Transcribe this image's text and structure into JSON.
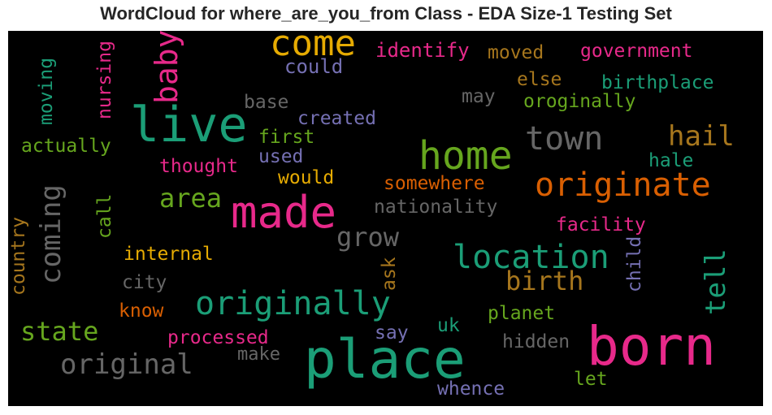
{
  "title": "WordCloud for where_are_you_from Class - EDA Size-1 Testing Set",
  "words": {
    "come": {
      "text": "come",
      "color": "#e6ab02"
    },
    "live": {
      "text": "live",
      "color": "#1b9e77"
    },
    "home": {
      "text": "home",
      "color": "#66a61e"
    },
    "town": {
      "text": "town",
      "color": "#666666"
    },
    "made": {
      "text": "made",
      "color": "#e7298a"
    },
    "originate": {
      "text": "originate",
      "color": "#d95f02"
    },
    "place": {
      "text": "place",
      "color": "#1b9e77"
    },
    "born": {
      "text": "born",
      "color": "#e7298a"
    },
    "originally_big": {
      "text": "originally",
      "color": "#1b9e77"
    },
    "location": {
      "text": "location",
      "color": "#1b9e77"
    },
    "baby": {
      "text": "baby",
      "color": "#e7298a"
    },
    "could": {
      "text": "could",
      "color": "#7570b3"
    },
    "identify": {
      "text": "identify",
      "color": "#e7298a"
    },
    "moved": {
      "text": "moved",
      "color": "#a6761d"
    },
    "government": {
      "text": "government",
      "color": "#e7298a"
    },
    "else": {
      "text": "else",
      "color": "#a6761d"
    },
    "birthplace": {
      "text": "birthplace",
      "color": "#1b9e77"
    },
    "may": {
      "text": "may",
      "color": "#666666"
    },
    "oroginally": {
      "text": "oroginally",
      "color": "#66a61e"
    },
    "base": {
      "text": "base",
      "color": "#666666"
    },
    "created": {
      "text": "created",
      "color": "#7570b3"
    },
    "moving": {
      "text": "moving",
      "color": "#1b9e77"
    },
    "nursing": {
      "text": "nursing",
      "color": "#e7298a"
    },
    "actually": {
      "text": "actually",
      "color": "#66a61e"
    },
    "first": {
      "text": "first",
      "color": "#66a61e"
    },
    "used": {
      "text": "used",
      "color": "#7570b3"
    },
    "hail": {
      "text": "hail",
      "color": "#a6761d"
    },
    "hale": {
      "text": "hale",
      "color": "#1b9e77"
    },
    "thought": {
      "text": "thought",
      "color": "#e7298a"
    },
    "would": {
      "text": "would",
      "color": "#e6ab02"
    },
    "somewhere": {
      "text": "somewhere",
      "color": "#d95f02"
    },
    "area": {
      "text": "area",
      "color": "#66a61e"
    },
    "coming": {
      "text": "coming",
      "color": "#666666"
    },
    "nationality": {
      "text": "nationality",
      "color": "#666666"
    },
    "call": {
      "text": "call",
      "color": "#66a61e"
    },
    "country": {
      "text": "country",
      "color": "#a6761d"
    },
    "grow": {
      "text": "grow",
      "color": "#666666"
    },
    "facility": {
      "text": "facility",
      "color": "#e7298a"
    },
    "internal": {
      "text": "internal",
      "color": "#e6ab02"
    },
    "child": {
      "text": "child",
      "color": "#7570b3"
    },
    "tell": {
      "text": "tell",
      "color": "#1b9e77"
    },
    "birth": {
      "text": "birth",
      "color": "#a6761d"
    },
    "ask": {
      "text": "ask",
      "color": "#a6761d"
    },
    "city": {
      "text": "city",
      "color": "#666666"
    },
    "know": {
      "text": "know",
      "color": "#d95f02"
    },
    "planet": {
      "text": "planet",
      "color": "#66a61e"
    },
    "state": {
      "text": "state",
      "color": "#66a61e"
    },
    "say": {
      "text": "say",
      "color": "#7570b3"
    },
    "uk": {
      "text": "uk",
      "color": "#1b9e77"
    },
    "processed": {
      "text": "processed",
      "color": "#e7298a"
    },
    "hidden": {
      "text": "hidden",
      "color": "#666666"
    },
    "original": {
      "text": "original",
      "color": "#666666"
    },
    "make": {
      "text": "make",
      "color": "#666666"
    },
    "let": {
      "text": "let",
      "color": "#66a61e"
    },
    "whence": {
      "text": "whence",
      "color": "#7570b3"
    }
  }
}
